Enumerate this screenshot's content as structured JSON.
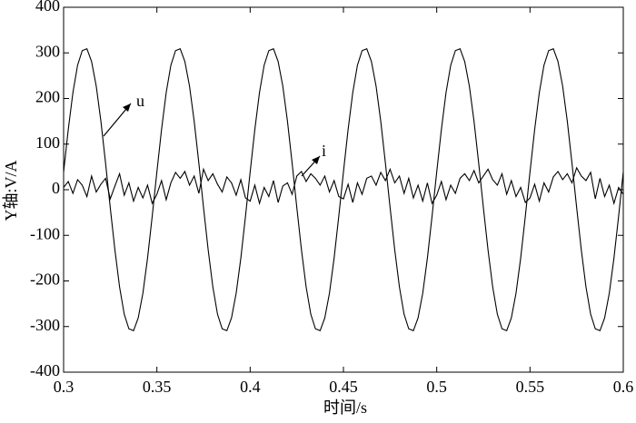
{
  "chart_data": {
    "type": "line",
    "xlabel": "时间/s",
    "ylabel": "Y轴:V/A",
    "x": [
      0.3,
      0.3025,
      0.305,
      0.3075,
      0.31,
      0.3125,
      0.315,
      0.3175,
      0.32,
      0.3225,
      0.325,
      0.3275,
      0.33,
      0.3325,
      0.335,
      0.3375,
      0.34,
      0.3425,
      0.345,
      0.3475,
      0.35,
      0.3525,
      0.355,
      0.3575,
      0.36,
      0.3625,
      0.365,
      0.3675,
      0.37,
      0.3725,
      0.375,
      0.3775,
      0.38,
      0.3825,
      0.385,
      0.3875,
      0.39,
      0.3925,
      0.395,
      0.3975,
      0.4,
      0.4025,
      0.405,
      0.4075,
      0.41,
      0.4125,
      0.415,
      0.4175,
      0.42,
      0.4225,
      0.425,
      0.4275,
      0.43,
      0.4325,
      0.435,
      0.4375,
      0.44,
      0.4425,
      0.445,
      0.4475,
      0.45,
      0.4525,
      0.455,
      0.4575,
      0.46,
      0.4625,
      0.465,
      0.4675,
      0.47,
      0.4725,
      0.475,
      0.4775,
      0.48,
      0.4825,
      0.485,
      0.4875,
      0.49,
      0.4925,
      0.495,
      0.4975,
      0.5,
      0.5025,
      0.505,
      0.5075,
      0.51,
      0.5125,
      0.515,
      0.5175,
      0.52,
      0.5225,
      0.525,
      0.5275,
      0.53,
      0.5325,
      0.535,
      0.5375,
      0.54,
      0.5425,
      0.545,
      0.5475,
      0.55,
      0.5525,
      0.555,
      0.5575,
      0.56,
      0.5625,
      0.565,
      0.5675,
      0.57,
      0.5725,
      0.575,
      0.5775,
      0.58,
      0.5825,
      0.585,
      0.5875,
      0.59,
      0.5925,
      0.595,
      0.5975,
      0.6
    ],
    "series": [
      {
        "name": "u",
        "color": "#000000",
        "values": [
          39,
          132,
          213,
          273,
          305,
          309,
          281,
          227,
          150,
          58,
          -39,
          -132,
          -213,
          -273,
          -305,
          -309,
          -281,
          -227,
          -150,
          -58,
          39,
          132,
          213,
          273,
          305,
          309,
          281,
          227,
          150,
          58,
          -39,
          -132,
          -213,
          -273,
          -305,
          -309,
          -281,
          -227,
          -150,
          -58,
          39,
          132,
          213,
          273,
          305,
          309,
          281,
          227,
          150,
          58,
          -39,
          -132,
          -213,
          -273,
          -305,
          -309,
          -281,
          -227,
          -150,
          -58,
          39,
          132,
          213,
          273,
          305,
          309,
          281,
          227,
          150,
          58,
          -39,
          -132,
          -213,
          -273,
          -305,
          -309,
          -281,
          -227,
          -150,
          -58,
          39,
          132,
          213,
          273,
          305,
          309,
          281,
          227,
          150,
          58,
          -39,
          -132,
          -213,
          -273,
          -305,
          -309,
          -281,
          -227,
          -150,
          -58,
          39,
          132,
          213,
          273,
          305,
          309,
          281,
          227,
          150,
          58,
          -39,
          -132,
          -213,
          -273,
          -305,
          -309,
          -281,
          -227,
          -150,
          -58,
          39
        ]
      },
      {
        "name": "i",
        "color": "#000000",
        "values": [
          5,
          18,
          -8,
          22,
          10,
          -15,
          30,
          -5,
          12,
          25,
          -20,
          8,
          35,
          -12,
          15,
          -25,
          5,
          -18,
          10,
          -30,
          -10,
          20,
          -22,
          15,
          38,
          25,
          40,
          10,
          30,
          -8,
          45,
          20,
          35,
          12,
          -5,
          28,
          15,
          -12,
          22,
          -18,
          -25,
          10,
          -30,
          5,
          -15,
          20,
          -28,
          8,
          15,
          -10,
          30,
          40,
          18,
          35,
          25,
          10,
          30,
          -5,
          20,
          -15,
          -20,
          12,
          -28,
          15,
          -10,
          25,
          30,
          10,
          38,
          20,
          45,
          15,
          30,
          -8,
          25,
          -18,
          10,
          -25,
          15,
          -30,
          -12,
          18,
          -22,
          10,
          -8,
          25,
          35,
          20,
          42,
          15,
          30,
          45,
          22,
          10,
          35,
          -10,
          20,
          -15,
          5,
          -28,
          -18,
          12,
          -25,
          15,
          -5,
          28,
          40,
          22,
          35,
          15,
          48,
          30,
          20,
          38,
          -20,
          25,
          -15,
          10,
          -30,
          5,
          -10
        ]
      }
    ],
    "xlim": [
      0.3,
      0.6
    ],
    "xticks": [
      0.3,
      0.35,
      0.4,
      0.45,
      0.5,
      0.55,
      0.6
    ],
    "ylim": [
      -400,
      400
    ],
    "yticks": [
      -400,
      -300,
      -200,
      -100,
      0,
      100,
      200,
      300,
      400
    ],
    "grid": false
  }
}
